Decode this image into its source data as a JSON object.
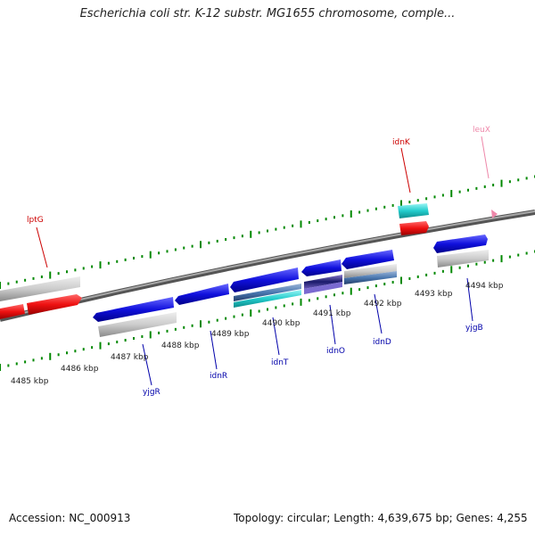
{
  "header": {
    "title": "Escherichia coli str. K-12 substr. MG1655 chromosome, comple..."
  },
  "footer": {
    "accession": "Accession: NC_000913",
    "topology": "Topology: circular; Length: 4,639,675 bp; Genes: 4,255"
  },
  "scale_labels": [
    "4485 kbp",
    "4486 kbp",
    "4487 kbp",
    "4488 kbp",
    "4489 kbp",
    "4490 kbp",
    "4491 kbp",
    "4492 kbp",
    "4493 kbp",
    "4494 kbp"
  ],
  "genes": {
    "lptG": "lptG",
    "idnK": "idnK",
    "leuX": "leuX",
    "yjgR": "yjgR",
    "idnR": "idnR",
    "idnT": "idnT",
    "idnO": "idnO",
    "idnD": "idnD",
    "yjgB": "yjgB"
  },
  "colors": {
    "forward_gene": "#1010dd",
    "reverse_gene": "#ee1111",
    "pseudo": "#c8c8c8",
    "rna": "#22cccc",
    "tick": "#008800",
    "backbone": "#888888",
    "label_red": "#cc0000",
    "label_blue": "#0000aa",
    "label_pink": "#ee88aa"
  }
}
